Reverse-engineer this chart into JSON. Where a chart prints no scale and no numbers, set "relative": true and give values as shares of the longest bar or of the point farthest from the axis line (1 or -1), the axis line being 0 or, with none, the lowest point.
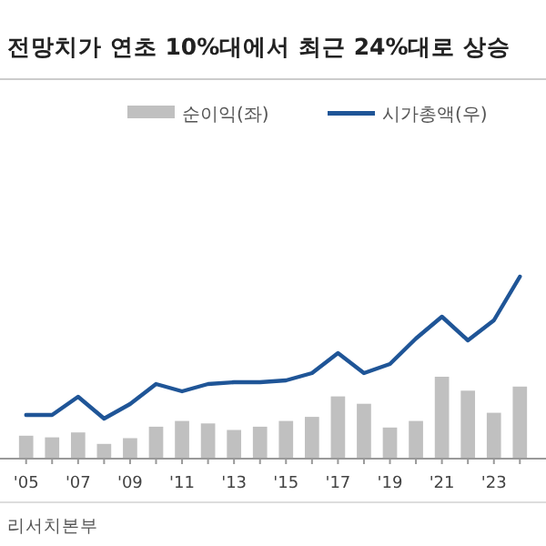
{
  "chart_data": {
    "type": "bar",
    "title": "전망치가 연초 10%대에서 최근 24%대로 상승",
    "relative": true,
    "legend": "top",
    "categories": [
      "'05",
      null,
      "'07",
      null,
      "'09",
      null,
      "'11",
      null,
      "'13",
      null,
      "'15",
      null,
      "'17",
      null,
      "'19",
      null,
      "'21",
      null,
      "'23",
      null
    ],
    "series": [
      {
        "name": "순이익(좌)",
        "color": "#c0c0c0",
        "values": [
          0.28,
          0.26,
          0.32,
          0.18,
          0.25,
          0.39,
          0.46,
          0.43,
          0.35,
          0.39,
          0.46,
          0.51,
          0.76,
          0.67,
          0.38,
          0.46,
          1,
          0.83,
          0.56,
          0.88
        ]
      },
      {
        "name": "시가총액(우)",
        "type": "line",
        "axis": "y2",
        "color": "#1f5597",
        "values": [
          0.24,
          0.24,
          0.34,
          0.22,
          0.3,
          0.41,
          0.37,
          0.41,
          0.42,
          0.42,
          0.43,
          0.47,
          0.58,
          0.47,
          0.52,
          0.66,
          0.78,
          0.65,
          0.76,
          1
        ]
      }
    ],
    "annotations": [
      "리서치본부"
    ]
  }
}
